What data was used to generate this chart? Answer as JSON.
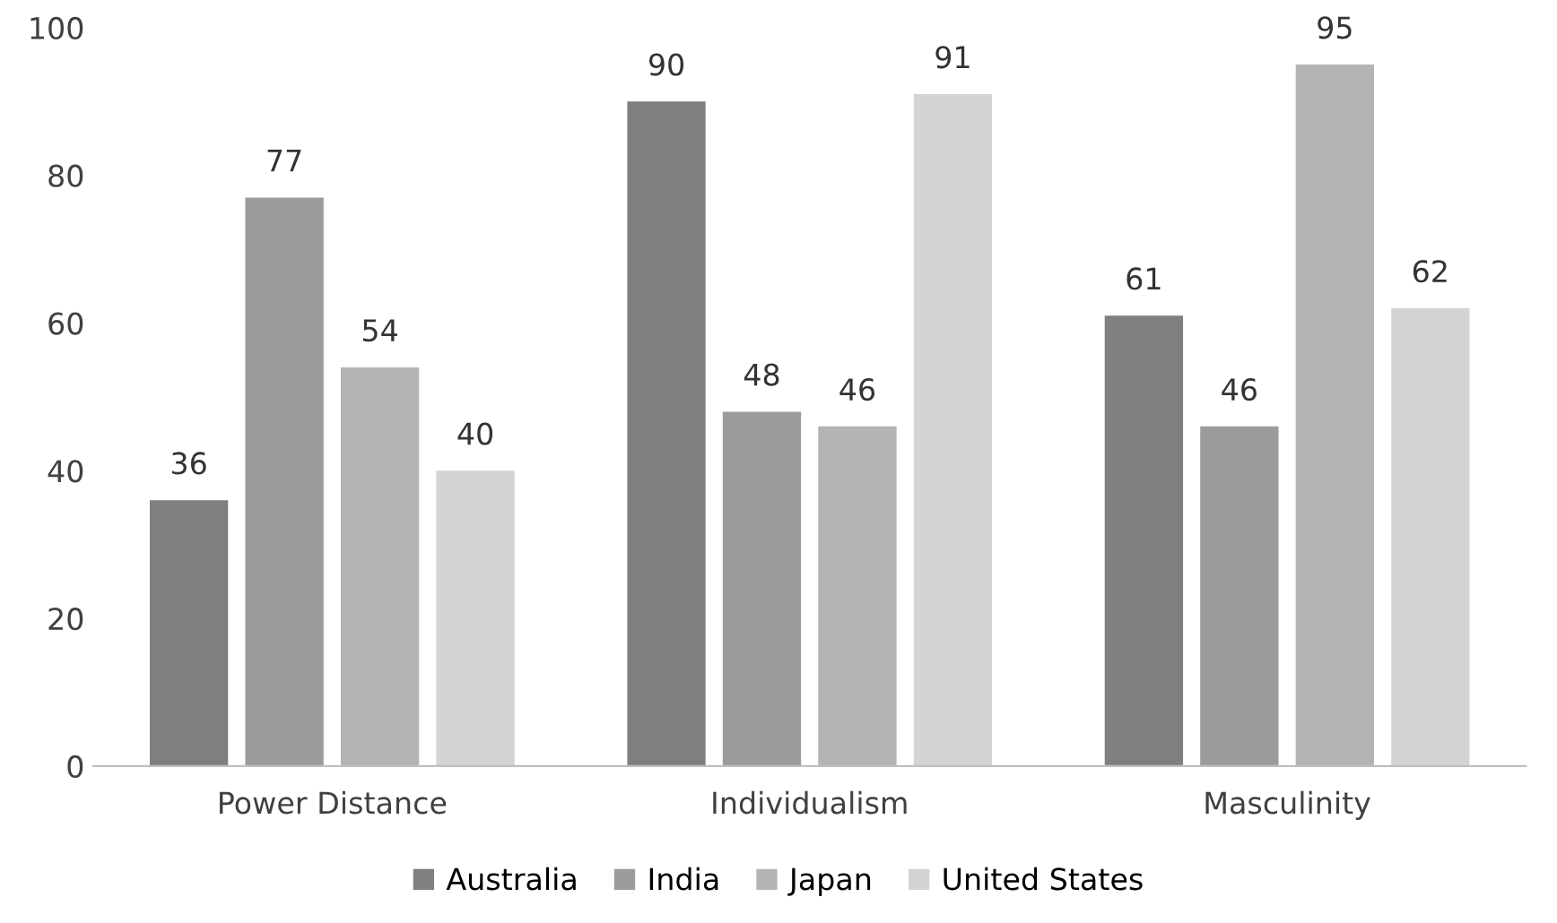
{
  "chart_data": {
    "type": "bar",
    "categories": [
      "Power Distance",
      "Individualism",
      "Masculinity"
    ],
    "series": [
      {
        "name": "Australia",
        "color": "#7f7f7f",
        "values": [
          36,
          90,
          61
        ]
      },
      {
        "name": "India",
        "color": "#9b9b9b",
        "values": [
          77,
          48,
          46
        ]
      },
      {
        "name": "Japan",
        "color": "#b4b4b4",
        "values": [
          54,
          46,
          95
        ]
      },
      {
        "name": "United States",
        "color": "#d4d4d4",
        "values": [
          40,
          91,
          62
        ]
      }
    ],
    "ylim": [
      0,
      100
    ],
    "yticks": [
      0,
      20,
      40,
      60,
      80,
      100
    ],
    "grid": false,
    "legend": "bottom",
    "data_labels": true
  }
}
